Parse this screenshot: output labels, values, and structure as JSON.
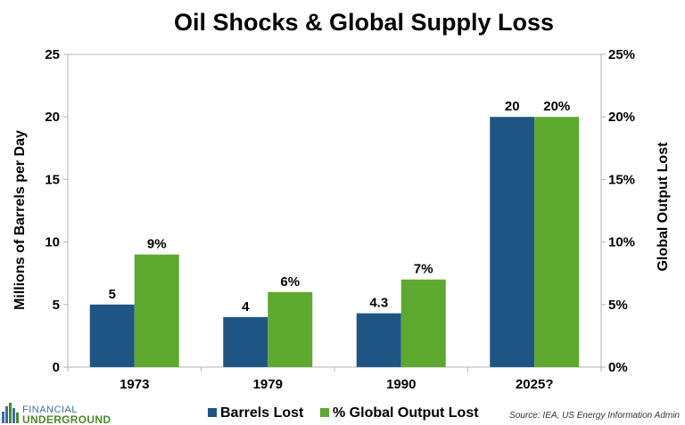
{
  "chart_data": {
    "type": "bar",
    "title": "Oil Shocks & Global Supply Loss",
    "categories": [
      "1973",
      "1979",
      "1990",
      "2025?"
    ],
    "series": [
      {
        "name": "Barrels Lost",
        "axis": "left",
        "values": [
          5,
          4,
          4.3,
          20
        ],
        "labels": [
          "5",
          "4",
          "4.3",
          "20"
        ],
        "color": "#1f5582"
      },
      {
        "name": "% Global Output Lost",
        "axis": "right",
        "values": [
          9,
          6,
          7,
          20
        ],
        "labels": [
          "9%",
          "6%",
          "7%",
          "20%"
        ],
        "color": "#5ea82f"
      }
    ],
    "ylabel": "Millions of Barrels per Day",
    "y2label": "Global Output Lost",
    "ylim": [
      0,
      25
    ],
    "y2lim": [
      0,
      25
    ],
    "yticks": [
      "0",
      "5",
      "10",
      "15",
      "20",
      "25"
    ],
    "y2ticks": [
      "0%",
      "5%",
      "10%",
      "15%",
      "20%",
      "25%"
    ],
    "grid": false,
    "legend_position": "bottom"
  },
  "source": "Source: IEA, US Energy Information Admin",
  "logo": {
    "line1": "FINANCIAL",
    "line2": "UNDERGROUND"
  }
}
